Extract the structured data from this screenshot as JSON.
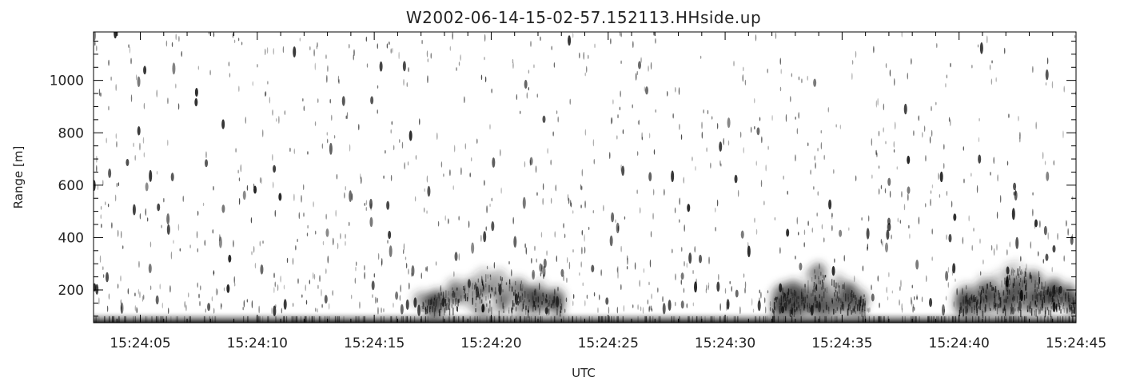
{
  "chart_data": {
    "type": "heatmap",
    "title": "W2002-06-14-15-02-57.152113.HHside.up",
    "xlabel": "UTC",
    "ylabel": "Range [m]",
    "x_ticks": [
      "15:24:05",
      "15:24:10",
      "15:24:15",
      "15:24:20",
      "15:24:25",
      "15:24:30",
      "15:24:35",
      "15:24:40",
      "15:24:45"
    ],
    "y_ticks": [
      200,
      400,
      600,
      800,
      1000
    ],
    "xlim": [
      "15:24:03",
      "15:24:45"
    ],
    "ylim": [
      75,
      1185
    ],
    "colormap": "grayscale (white = low, black = high)",
    "features": [
      {
        "kind": "surface_band",
        "x_range": [
          "15:24:03",
          "15:24:45"
        ],
        "y_range": [
          75,
          120
        ],
        "intensity": "high"
      },
      {
        "kind": "echo_cluster",
        "x_range": [
          "15:24:17",
          "15:24:23"
        ],
        "y_range": [
          120,
          270
        ],
        "intensity": "medium-high"
      },
      {
        "kind": "echo_cluster",
        "x_range": [
          "15:24:32",
          "15:24:36"
        ],
        "y_range": [
          120,
          280
        ],
        "intensity": "medium-high"
      },
      {
        "kind": "echo_cluster",
        "x_range": [
          "15:24:40",
          "15:24:45"
        ],
        "y_range": [
          120,
          300
        ],
        "intensity": "high"
      },
      {
        "kind": "scattered_echoes",
        "x_range": [
          "15:24:03",
          "15:24:45"
        ],
        "y_range": [
          120,
          1185
        ],
        "intensity": "low"
      }
    ]
  }
}
